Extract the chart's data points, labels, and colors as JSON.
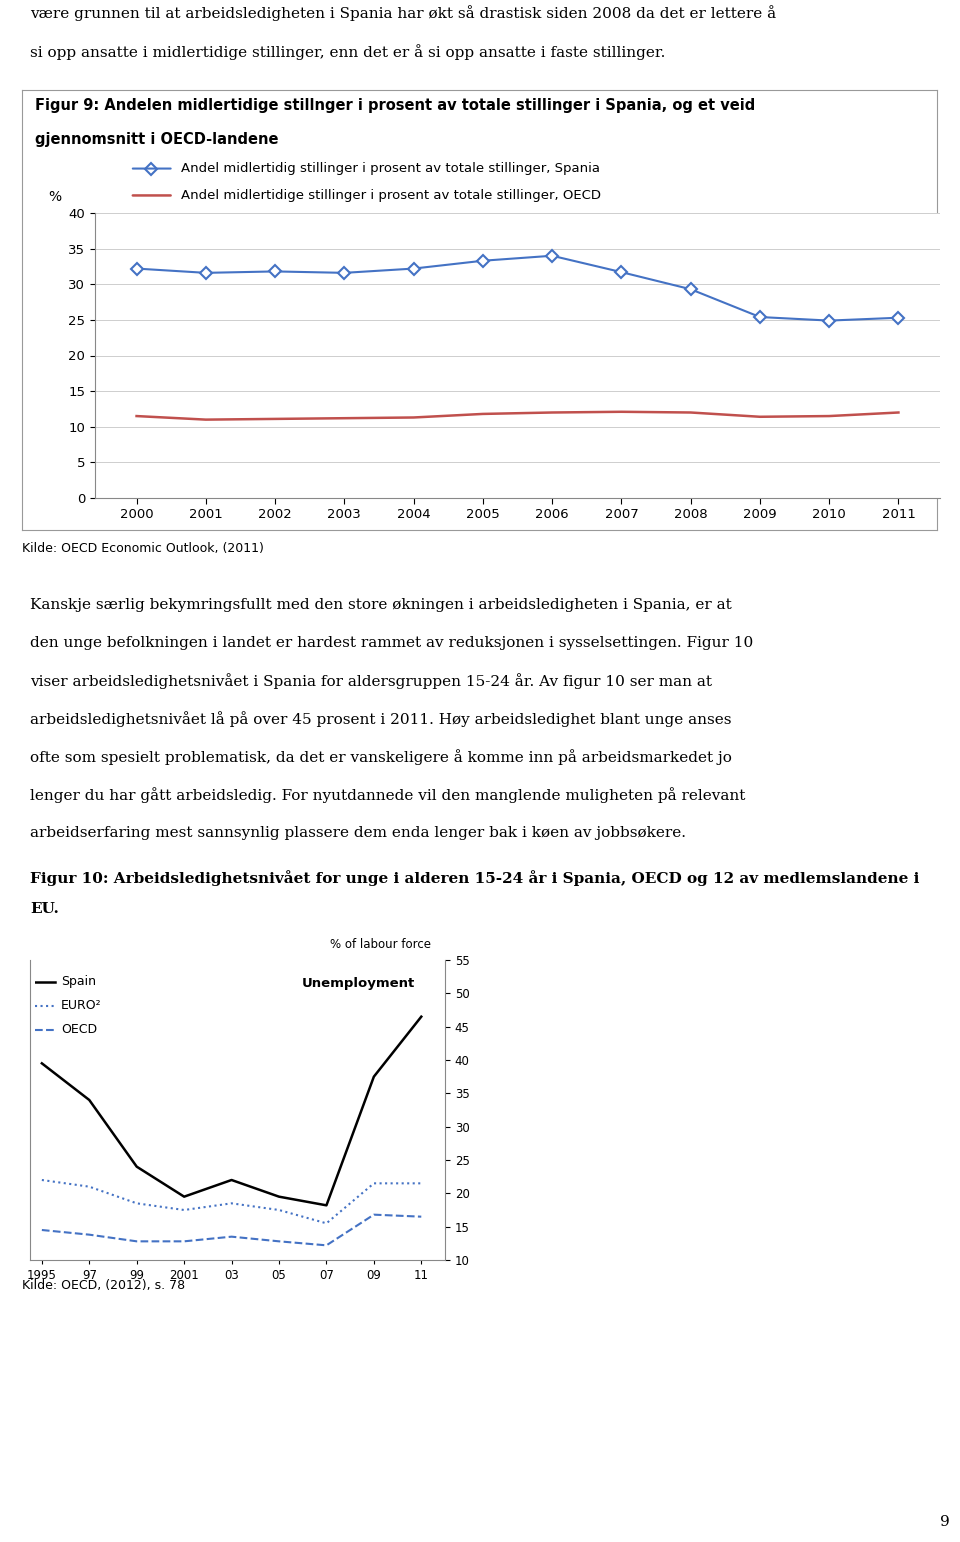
{
  "page_bg": "#ffffff",
  "top_line1": "være grunnen til at arbeidsledigheten i Spania har økt så drastisk siden 2008 da det er lettere å",
  "top_line2": "si opp ansatte i midlertidige stillinger, enn det er å si opp ansatte i faste stillinger.",
  "fig9_title_line1": "Figur 9: Andelen midlertidige stillnger i prosent av totale stillinger i Spania, og et veid",
  "fig9_title_line2": "gjennomsnitt i OECD-landene",
  "fig9_legend_spain": "Andel midlertidig stillinger i prosent av totale stillinger, Spania",
  "fig9_legend_oecd": "Andel midlertidige stillinger i prosent av totale stillinger, OECD",
  "fig9_ylabel": "%",
  "years": [
    2000,
    2001,
    2002,
    2003,
    2004,
    2005,
    2006,
    2007,
    2008,
    2009,
    2010,
    2011
  ],
  "spain_data": [
    32.2,
    31.6,
    31.8,
    31.6,
    32.2,
    33.3,
    34.0,
    31.7,
    29.3,
    25.4,
    24.9,
    25.3
  ],
  "oecd_data": [
    11.5,
    11.0,
    11.1,
    11.2,
    11.3,
    11.8,
    12.0,
    12.1,
    12.0,
    11.4,
    11.5,
    12.0
  ],
  "spain_color": "#4472C4",
  "oecd_color": "#C0504D",
  "fig9_source": "Kilde: OECD Economic Outlook, (2011)",
  "mid_text": [
    "Kanskje særlig bekymringsfullt med den store økningen i arbeidsledigheten i Spania, er at",
    "den unge befolkningen i landet er hardest rammet av reduksjonen i sysselsettingen. Figur 10",
    "viser arbeidsledighetsnivået i Spania for aldersgruppen 15-24 år. Av figur 10 ser man at",
    "arbeidsledighetsnivået lå på over 45 prosent i 2011. Høy arbeidsledighet blant unge anses",
    "ofte som spesielt problematisk, da det er vanskeligere å komme inn på arbeidsmarkedet jo",
    "lenger du har gått arbeidsledig. For nyutdannede vil den manglende muligheten på relevant",
    "arbeidserfaring mest sannsynlig plassere dem enda lenger bak i køen av jobbsøkere."
  ],
  "fig10_title_line1": "Figur 10: Arbeidsledighetsnivået for unge i alderen 15-24 år i Spania, OECD og 12 av medlemslandene i",
  "fig10_title_line2": "EU.",
  "fig10_ylabel": "% of labour force",
  "fig10_unemp_label": "Unemployment",
  "fig10_x": [
    1995,
    1997,
    1999,
    2001,
    2003,
    2005,
    2007,
    2009,
    2011
  ],
  "fig10_xtick_labels": [
    "1995",
    "97",
    "99",
    "2001",
    "03",
    "05",
    "07",
    "09",
    "11"
  ],
  "fig10_spain": [
    39.5,
    34.0,
    24.0,
    19.5,
    22.0,
    19.5,
    18.2,
    37.5,
    46.5
  ],
  "fig10_euro2": [
    22.0,
    21.0,
    18.5,
    17.5,
    18.5,
    17.5,
    15.5,
    21.5,
    21.5
  ],
  "fig10_oecd": [
    14.5,
    13.8,
    12.8,
    12.8,
    13.5,
    12.8,
    12.2,
    16.8,
    16.5
  ],
  "fig10_legend_spain": "Spain",
  "fig10_legend_euro2": "EURO²",
  "fig10_legend_oecd": "OECD",
  "fig10_source": "Kilde: OECD, (2012), s. 78",
  "page_number": "9"
}
